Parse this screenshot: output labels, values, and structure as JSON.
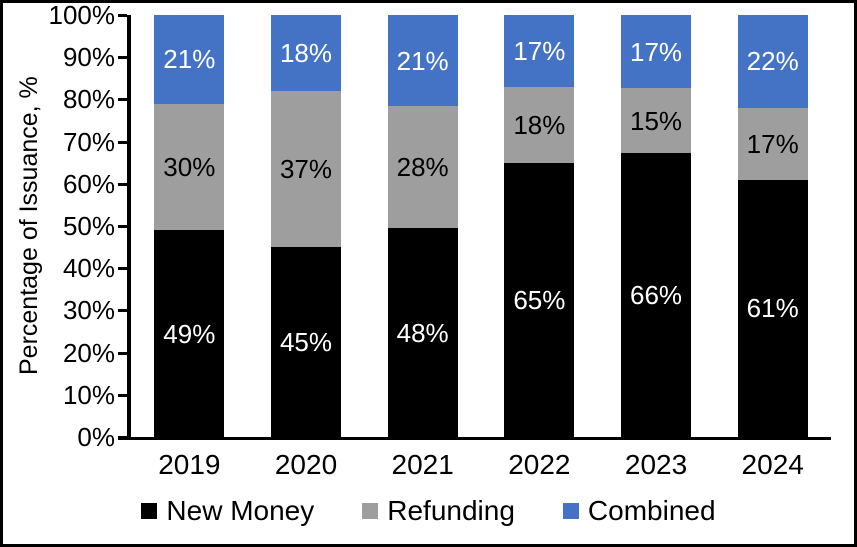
{
  "chart_data": {
    "type": "bar",
    "stacked": true,
    "title": "",
    "ylabel": "Percentage of Issuance, %",
    "xlabel": "",
    "ylim": [
      0,
      100
    ],
    "ytick_step": 10,
    "ytick_labels": [
      "0%",
      "10%",
      "20%",
      "30%",
      "40%",
      "50%",
      "60%",
      "70%",
      "80%",
      "90%",
      "100%"
    ],
    "categories": [
      "2019",
      "2020",
      "2021",
      "2022",
      "2023",
      "2024"
    ],
    "series": [
      {
        "name": "New Money",
        "color": "#000000",
        "label_color": "#ffffff",
        "values": [
          49,
          45,
          48,
          65,
          66,
          61
        ],
        "labels": [
          "49%",
          "45%",
          "48%",
          "65%",
          "66%",
          "61%"
        ]
      },
      {
        "name": "Refunding",
        "color": "#9E9E9E",
        "label_color": "#000000",
        "values": [
          30,
          37,
          28,
          18,
          15,
          17
        ],
        "labels": [
          "30%",
          "37%",
          "28%",
          "18%",
          "15%",
          "17%"
        ]
      },
      {
        "name": "Combined",
        "color": "#4472C4",
        "label_color": "#ffffff",
        "values": [
          21,
          18,
          21,
          17,
          17,
          22
        ],
        "labels": [
          "21%",
          "18%",
          "21%",
          "17%",
          "17%",
          "22%"
        ]
      }
    ],
    "legend": {
      "position": "bottom",
      "entries": [
        "New Money",
        "Refunding",
        "Combined"
      ]
    },
    "grid": false,
    "value_suffix": "%"
  },
  "page": {
    "background": "#ffffff",
    "border_color": "#000000"
  }
}
